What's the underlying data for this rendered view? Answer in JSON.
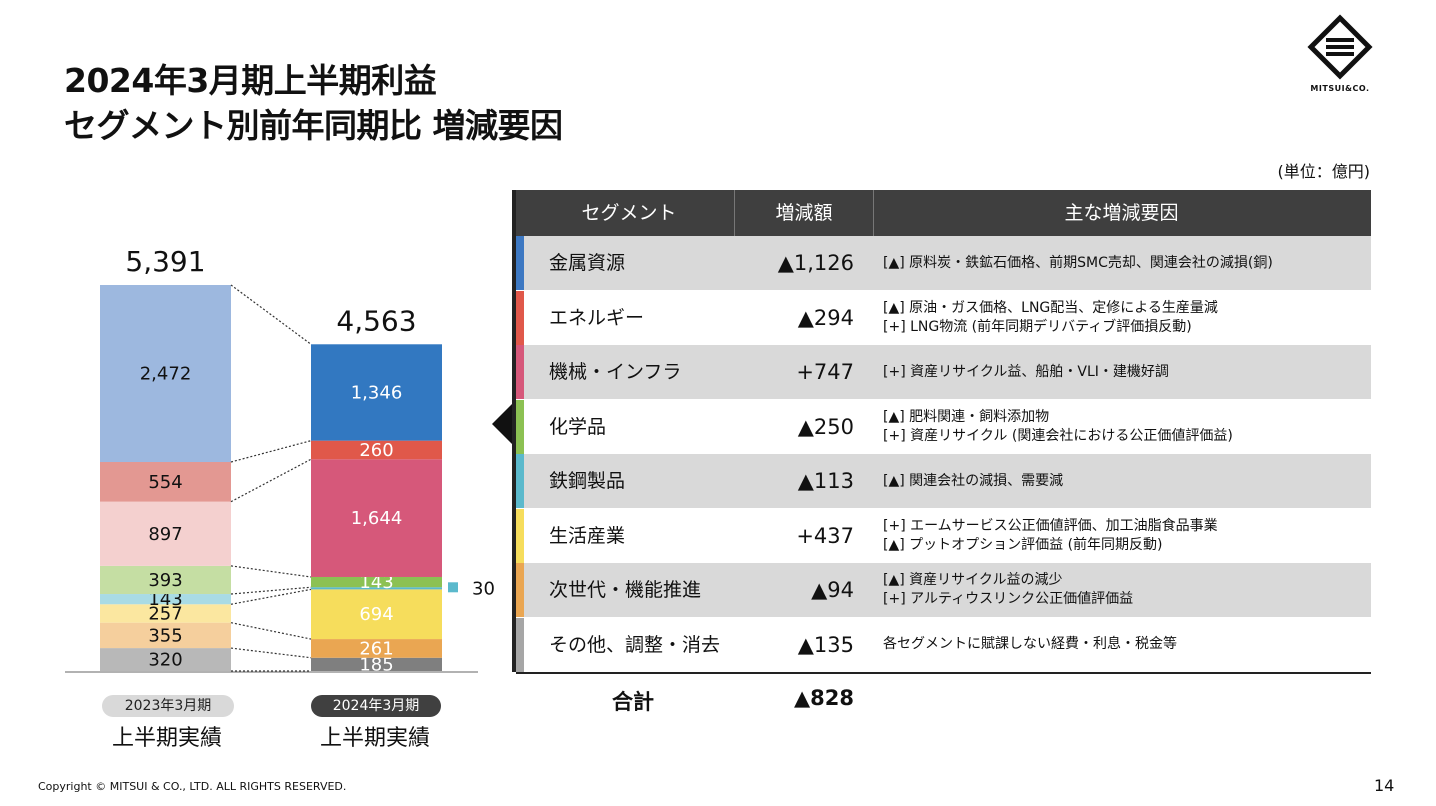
{
  "header": {
    "title_line1": "2024年3月期上半期利益",
    "title_line2": "セグメント別前年同期比 増減要因",
    "logo_text": "MITSUI&CO.",
    "unit": "(単位：億円)"
  },
  "chart_data": {
    "type": "bar",
    "stacked": true,
    "categories": [
      "2023年3月期 上半期実績",
      "2024年3月期 上半期実績"
    ],
    "totals": [
      "5,391",
      "4,563"
    ],
    "series": [
      {
        "segment": "その他、調整・消去",
        "color": "#b8b8b8",
        "color2": "#7f7f7f",
        "values": [
          320,
          185
        ],
        "labels": [
          "320",
          "185"
        ]
      },
      {
        "segment": "次世代・機能推進",
        "color": "#f5cf9d",
        "color2": "#eaa652",
        "values": [
          355,
          261
        ],
        "labels": [
          "355",
          "261"
        ]
      },
      {
        "segment": "生活産業",
        "color": "#fbe7a0",
        "color2": "#f6dd5c",
        "values": [
          257,
          694
        ],
        "labels": [
          "257",
          "694"
        ]
      },
      {
        "segment": "鉄鋼製品",
        "color": "#a9dbe5",
        "color2": "#5bb9cc",
        "values": [
          143,
          30
        ],
        "labels": [
          "143",
          "30"
        ]
      },
      {
        "segment": "化学品",
        "color": "#c5dea3",
        "color2": "#8cc153",
        "values": [
          393,
          143
        ],
        "labels": [
          "393",
          "143"
        ]
      },
      {
        "segment": "機械・インフラ",
        "color": "#f4d0cf",
        "color2": "#d6587a",
        "values": [
          897,
          1644
        ],
        "labels": [
          "897",
          "1,644"
        ]
      },
      {
        "segment": "エネルギー",
        "color": "#e39892",
        "color2": "#e0584a",
        "values": [
          554,
          260
        ],
        "labels": [
          "554",
          "260"
        ]
      },
      {
        "segment": "金属資源",
        "color": "#9db8df",
        "color2": "#3278c1",
        "values": [
          2472,
          1346
        ],
        "labels": [
          "2,472",
          "1,346"
        ]
      }
    ]
  },
  "axis_labels": {
    "left_pill": "2023年3月期",
    "left_sub": "上半期実績",
    "right_pill": "2024年3月期",
    "right_sub": "上半期実績"
  },
  "table": {
    "headers": [
      "セグメント",
      "増減額",
      "主な増減要因"
    ],
    "rows": [
      {
        "segment": "金属資源",
        "color": "#3d78c2",
        "amount": "▲1,126",
        "reasons": [
          "[▲] 原料炭・鉄鉱石価格、前期SMC売却、関連会社の減損(銅)"
        ]
      },
      {
        "segment": "エネルギー",
        "color": "#e0584a",
        "amount": "▲294",
        "reasons": [
          "[▲] 原油・ガス価格、LNG配当、定修による生産量減",
          "[+] LNG物流 (前年同期デリバティブ評価損反動)"
        ]
      },
      {
        "segment": "機械・インフラ",
        "color": "#d6587a",
        "amount": "+747",
        "reasons": [
          "[+] 資産リサイクル益、船舶・VLI・建機好調"
        ]
      },
      {
        "segment": "化学品",
        "color": "#8cc153",
        "amount": "▲250",
        "reasons": [
          "[▲] 肥料関連・飼料添加物",
          "[+] 資産リサイクル (関連会社における公正価値評価益)"
        ]
      },
      {
        "segment": "鉄鋼製品",
        "color": "#5bb9cc",
        "amount": "▲113",
        "reasons": [
          "[▲] 関連会社の減損、需要減"
        ]
      },
      {
        "segment": "生活産業",
        "color": "#f6dd5c",
        "amount": "+437",
        "reasons": [
          "[+] エームサービス公正価値評価、加工油脂食品事業",
          "[▲] プットオプション評価益 (前年同期反動)"
        ]
      },
      {
        "segment": "次世代・機能推進",
        "color": "#eaa652",
        "amount": "▲94",
        "reasons": [
          "[▲] 資産リサイクル益の減少",
          "[+] アルティウスリンク公正価値評価益"
        ]
      },
      {
        "segment": "その他、調整・消去",
        "color": "#a6a6a6",
        "amount": "▲135",
        "reasons": [
          "各セグメントに賦課しない経費・利息・税金等"
        ]
      }
    ],
    "total_label": "合計",
    "total_amount": "▲828"
  },
  "footer": {
    "copyright": "Copyright © MITSUI & CO., LTD. ALL RIGHTS RESERVED.",
    "page_number": "14"
  }
}
